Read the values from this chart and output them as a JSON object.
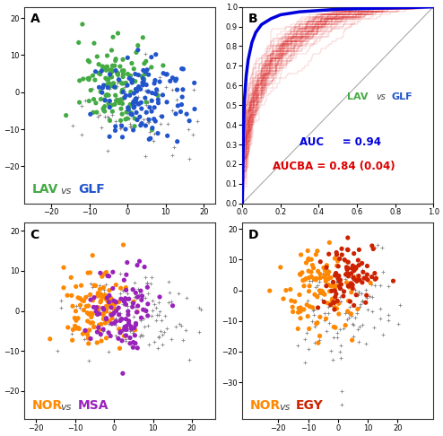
{
  "panel_A": {
    "label": "A",
    "scatter_green": {
      "x_mean": -3,
      "y_mean": 2,
      "x_std": 5,
      "y_std": 6,
      "n": 130,
      "color": "#44aa44",
      "seed": 42
    },
    "scatter_blue": {
      "x_mean": 4,
      "y_mean": -1,
      "x_std": 6,
      "y_std": 6,
      "n": 120,
      "color": "#2255cc",
      "seed": 7
    },
    "scatter_gray": {
      "x_mean": 1,
      "y_mean": -4,
      "x_std": 8,
      "y_std": 6,
      "n": 80,
      "color": "#888888",
      "seed": 13
    },
    "xlim": [
      -27,
      23
    ],
    "ylim": [
      -30,
      23
    ],
    "xticks": [
      -20,
      -10,
      0,
      10,
      20
    ],
    "yticks": [
      -20,
      -10,
      0,
      10,
      20
    ],
    "label1": "LAV",
    "label2": "GLF",
    "color1": "#44aa44",
    "color2": "#2255cc"
  },
  "panel_B": {
    "label": "B",
    "n_red_curves": 60,
    "auc_text": "AUC     = 0.94",
    "aucba_text": "AUCBA = 0.84 (0.04)",
    "legend_label1": "LAV",
    "legend_label2": "GLF",
    "color1": "#44aa44",
    "color2": "#2255cc",
    "xlim": [
      0,
      1
    ],
    "ylim": [
      0,
      1
    ],
    "xticks": [
      0,
      0.2,
      0.4,
      0.6,
      0.8,
      1.0
    ],
    "yticks": [
      0,
      0.1,
      0.2,
      0.3,
      0.4,
      0.5,
      0.6,
      0.7,
      0.8,
      0.9,
      1.0
    ]
  },
  "panel_C": {
    "label": "C",
    "scatter_orange": {
      "x_mean": -5,
      "y_mean": 1,
      "x_std": 4,
      "y_std": 5,
      "n": 110,
      "color": "#ff8800",
      "seed": 21
    },
    "scatter_purple": {
      "x_mean": 2,
      "y_mean": 0,
      "x_std": 4,
      "y_std": 5,
      "n": 100,
      "color": "#9922bb",
      "seed": 55
    },
    "scatter_gray": {
      "x_mean": 5,
      "y_mean": -1,
      "x_std": 7,
      "y_std": 5,
      "n": 130,
      "color": "#888888",
      "seed": 9
    },
    "xlim": [
      -23,
      26
    ],
    "ylim": [
      -27,
      22
    ],
    "xticks": [
      -20,
      -10,
      0,
      10,
      20
    ],
    "yticks": [
      -20,
      -10,
      0,
      10,
      20
    ],
    "label1": "NOR",
    "label2": "MSA",
    "color1": "#ff8800",
    "color2": "#9922bb"
  },
  "panel_D": {
    "label": "D",
    "scatter_orange": {
      "x_mean": -6,
      "y_mean": 1,
      "x_std": 6,
      "y_std": 7,
      "n": 110,
      "color": "#ff8800",
      "seed": 33
    },
    "scatter_red": {
      "x_mean": 4,
      "y_mean": 4,
      "x_std": 5,
      "y_std": 5,
      "n": 90,
      "color": "#cc2200",
      "seed": 77
    },
    "scatter_gray": {
      "x_mean": 3,
      "y_mean": -5,
      "x_std": 9,
      "y_std": 9,
      "n": 110,
      "color": "#888888",
      "seed": 19
    },
    "xlim": [
      -32,
      32
    ],
    "ylim": [
      -42,
      22
    ],
    "xticks": [
      -20,
      -10,
      0,
      10,
      20
    ],
    "yticks": [
      -30,
      -20,
      -10,
      0,
      10,
      20
    ],
    "label1": "NOR",
    "label2": "EGY",
    "color1": "#ff8800",
    "color2": "#cc2200"
  },
  "bg_color": "#ffffff"
}
